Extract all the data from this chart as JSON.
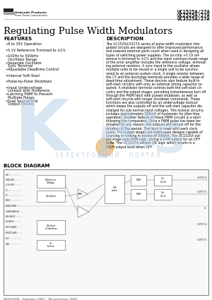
{
  "title": "Regulating Pulse Width Modulators",
  "company_line1": "Unitrode Products",
  "company_line2": "from Texas Instruments",
  "part_numbers": [
    "UC1525A/27A",
    "UC2525A/27A",
    "UC3525A/27A"
  ],
  "features_title": "FEATURES",
  "features": [
    "8 to 35V Operation",
    "5.1V Reference Trimmed to ±1%",
    "100Hz to 500kHz Oscillator Range",
    "Separate Oscillator Sync Terminal",
    "Adjustable Deadtime Control",
    "Internal Soft-Start",
    "Pulse-by-Pulse Shutdown",
    "Input Undervoltage Lockout with Hysteresis",
    "Latching PWM to Prevent Multiple Pulses",
    "Dual Source/Sink Output Drivers"
  ],
  "description_title": "DESCRIPTION",
  "description_lines": [
    "The UC1525A/1527A series of pulse width modulator inte-",
    "grated circuits are designed to offer improved performance",
    "and lowered external parts count when used in designing all",
    "types of switching power supplies. The on-chip +5.1V ref-",
    "erence is trimmed to ±1% and the input common-mode range",
    "of the error amplifier includes the reference voltage, eliminat-",
    "ing external resistors. A sync input to the oscillator allows",
    "multiple units to be slaved or a single unit to be synchro-",
    "nized to an external system clock. A single resistor between",
    "the CT and the discharge terminals provides a wide range of",
    "dead-time adjustment. These devices also feature built-in",
    "soft-start circuitry with only an external timing capacitor re-",
    "quired. A shutdown terminal controls both the soft-start cir-",
    "cuitry and the output stages, providing instantaneous turn off",
    "through the PWM latch with pulsed shutdown, as well as",
    "soft-start recycle with longer shutdown commands. These",
    "functions are also controlled by an undervoltage lockout",
    "which keeps the outputs off and the soft-start capacitor dis-",
    "charged for sub-normal input voltages. This lockout circuitry",
    "includes approximately 500mV of hysteresis for jitter-free",
    "operation. Another feature of these PWM circuits is a latch",
    "following the comparator. Once a PWM pulse has been ter-",
    "minated for any reason, the outputs will remain off for the",
    "duration of the period. The latch is reset with each clock",
    "pulse. The output stages are totem-pole designs capable of",
    "sourcing or sinking in excess of 200mA. The UC1525A out-",
    "put stage uses NOR logic, giving a LOW output for an OFF",
    "state. The UC1527A utilizes OR logic which results in a",
    "HIGH output level when OFF."
  ],
  "block_diagram_title": "BLOCK DIAGRAM",
  "footer": "SLUS191B – February 1997 – Revised June 2005",
  "watermark_text": "З Е Л Е К Т Р О Н Н Ы Й      П О Р Т А Л",
  "bg": "#ffffff"
}
